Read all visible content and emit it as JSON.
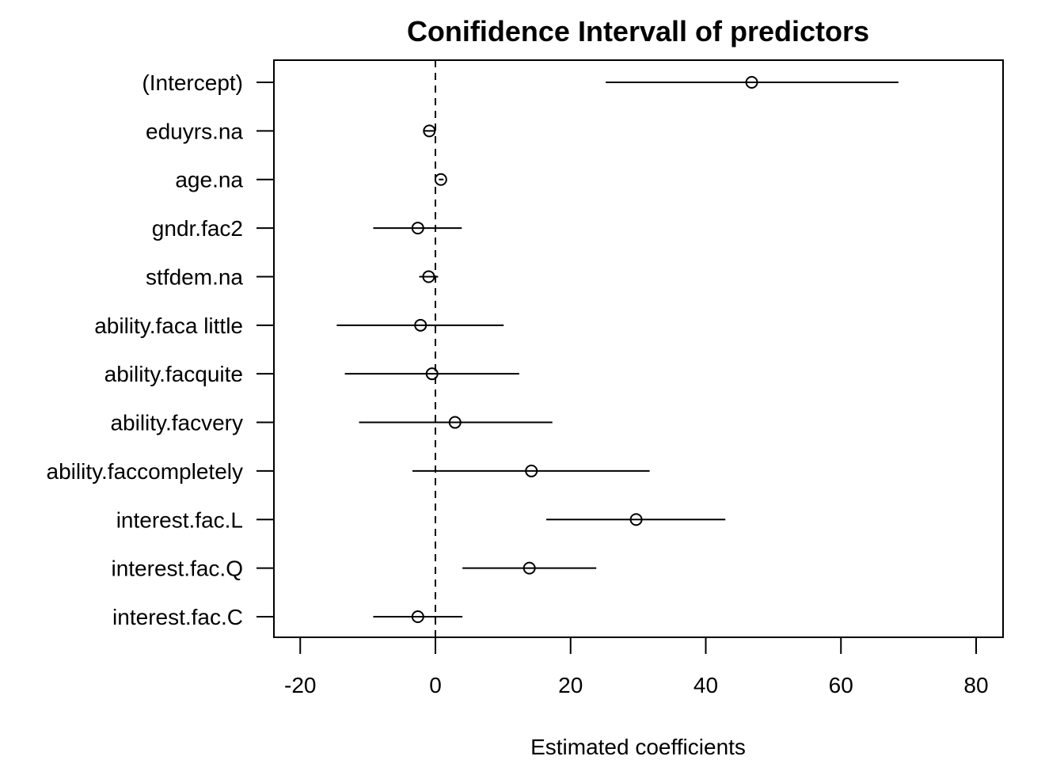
{
  "chart_data": {
    "type": "scatter",
    "title": "Conifidence Intervall of predictors",
    "xlabel": "Estimated coefficients",
    "ylabel": "",
    "xlim": [
      -24,
      84
    ],
    "xticks": [
      -20,
      0,
      20,
      40,
      60,
      80
    ],
    "xtick_labels": [
      "-20",
      "0",
      "20",
      "40",
      "60",
      "80"
    ],
    "reference_line": {
      "x": 0,
      "style": "dashed"
    },
    "grid": false,
    "point_style": "open-circle",
    "colors": {
      "line": "#000000",
      "background": "#ffffff"
    },
    "predictors": [
      {
        "label": "(Intercept)",
        "estimate": 46.8,
        "lower": 25.2,
        "upper": 68.5
      },
      {
        "label": "eduyrs.na",
        "estimate": -0.9,
        "lower": -1.8,
        "upper": 0.0
      },
      {
        "label": "age.na",
        "estimate": 0.8,
        "lower": 0.5,
        "upper": 1.2
      },
      {
        "label": "gndr.fac2",
        "estimate": -2.6,
        "lower": -9.2,
        "upper": 3.9
      },
      {
        "label": "stfdem.na",
        "estimate": -1.0,
        "lower": -2.4,
        "upper": 0.4
      },
      {
        "label": "ability.faca little",
        "estimate": -2.2,
        "lower": -14.6,
        "upper": 10.1
      },
      {
        "label": "ability.facquite",
        "estimate": -0.5,
        "lower": -13.4,
        "upper": 12.4
      },
      {
        "label": "ability.facvery",
        "estimate": 2.9,
        "lower": -11.3,
        "upper": 17.3
      },
      {
        "label": "ability.faccompletely",
        "estimate": 14.2,
        "lower": -3.4,
        "upper": 31.7
      },
      {
        "label": "interest.fac.L",
        "estimate": 29.7,
        "lower": 16.4,
        "upper": 42.9
      },
      {
        "label": "interest.fac.Q",
        "estimate": 13.9,
        "lower": 4.0,
        "upper": 23.8
      },
      {
        "label": "interest.fac.C",
        "estimate": -2.6,
        "lower": -9.2,
        "upper": 4.0
      }
    ]
  }
}
